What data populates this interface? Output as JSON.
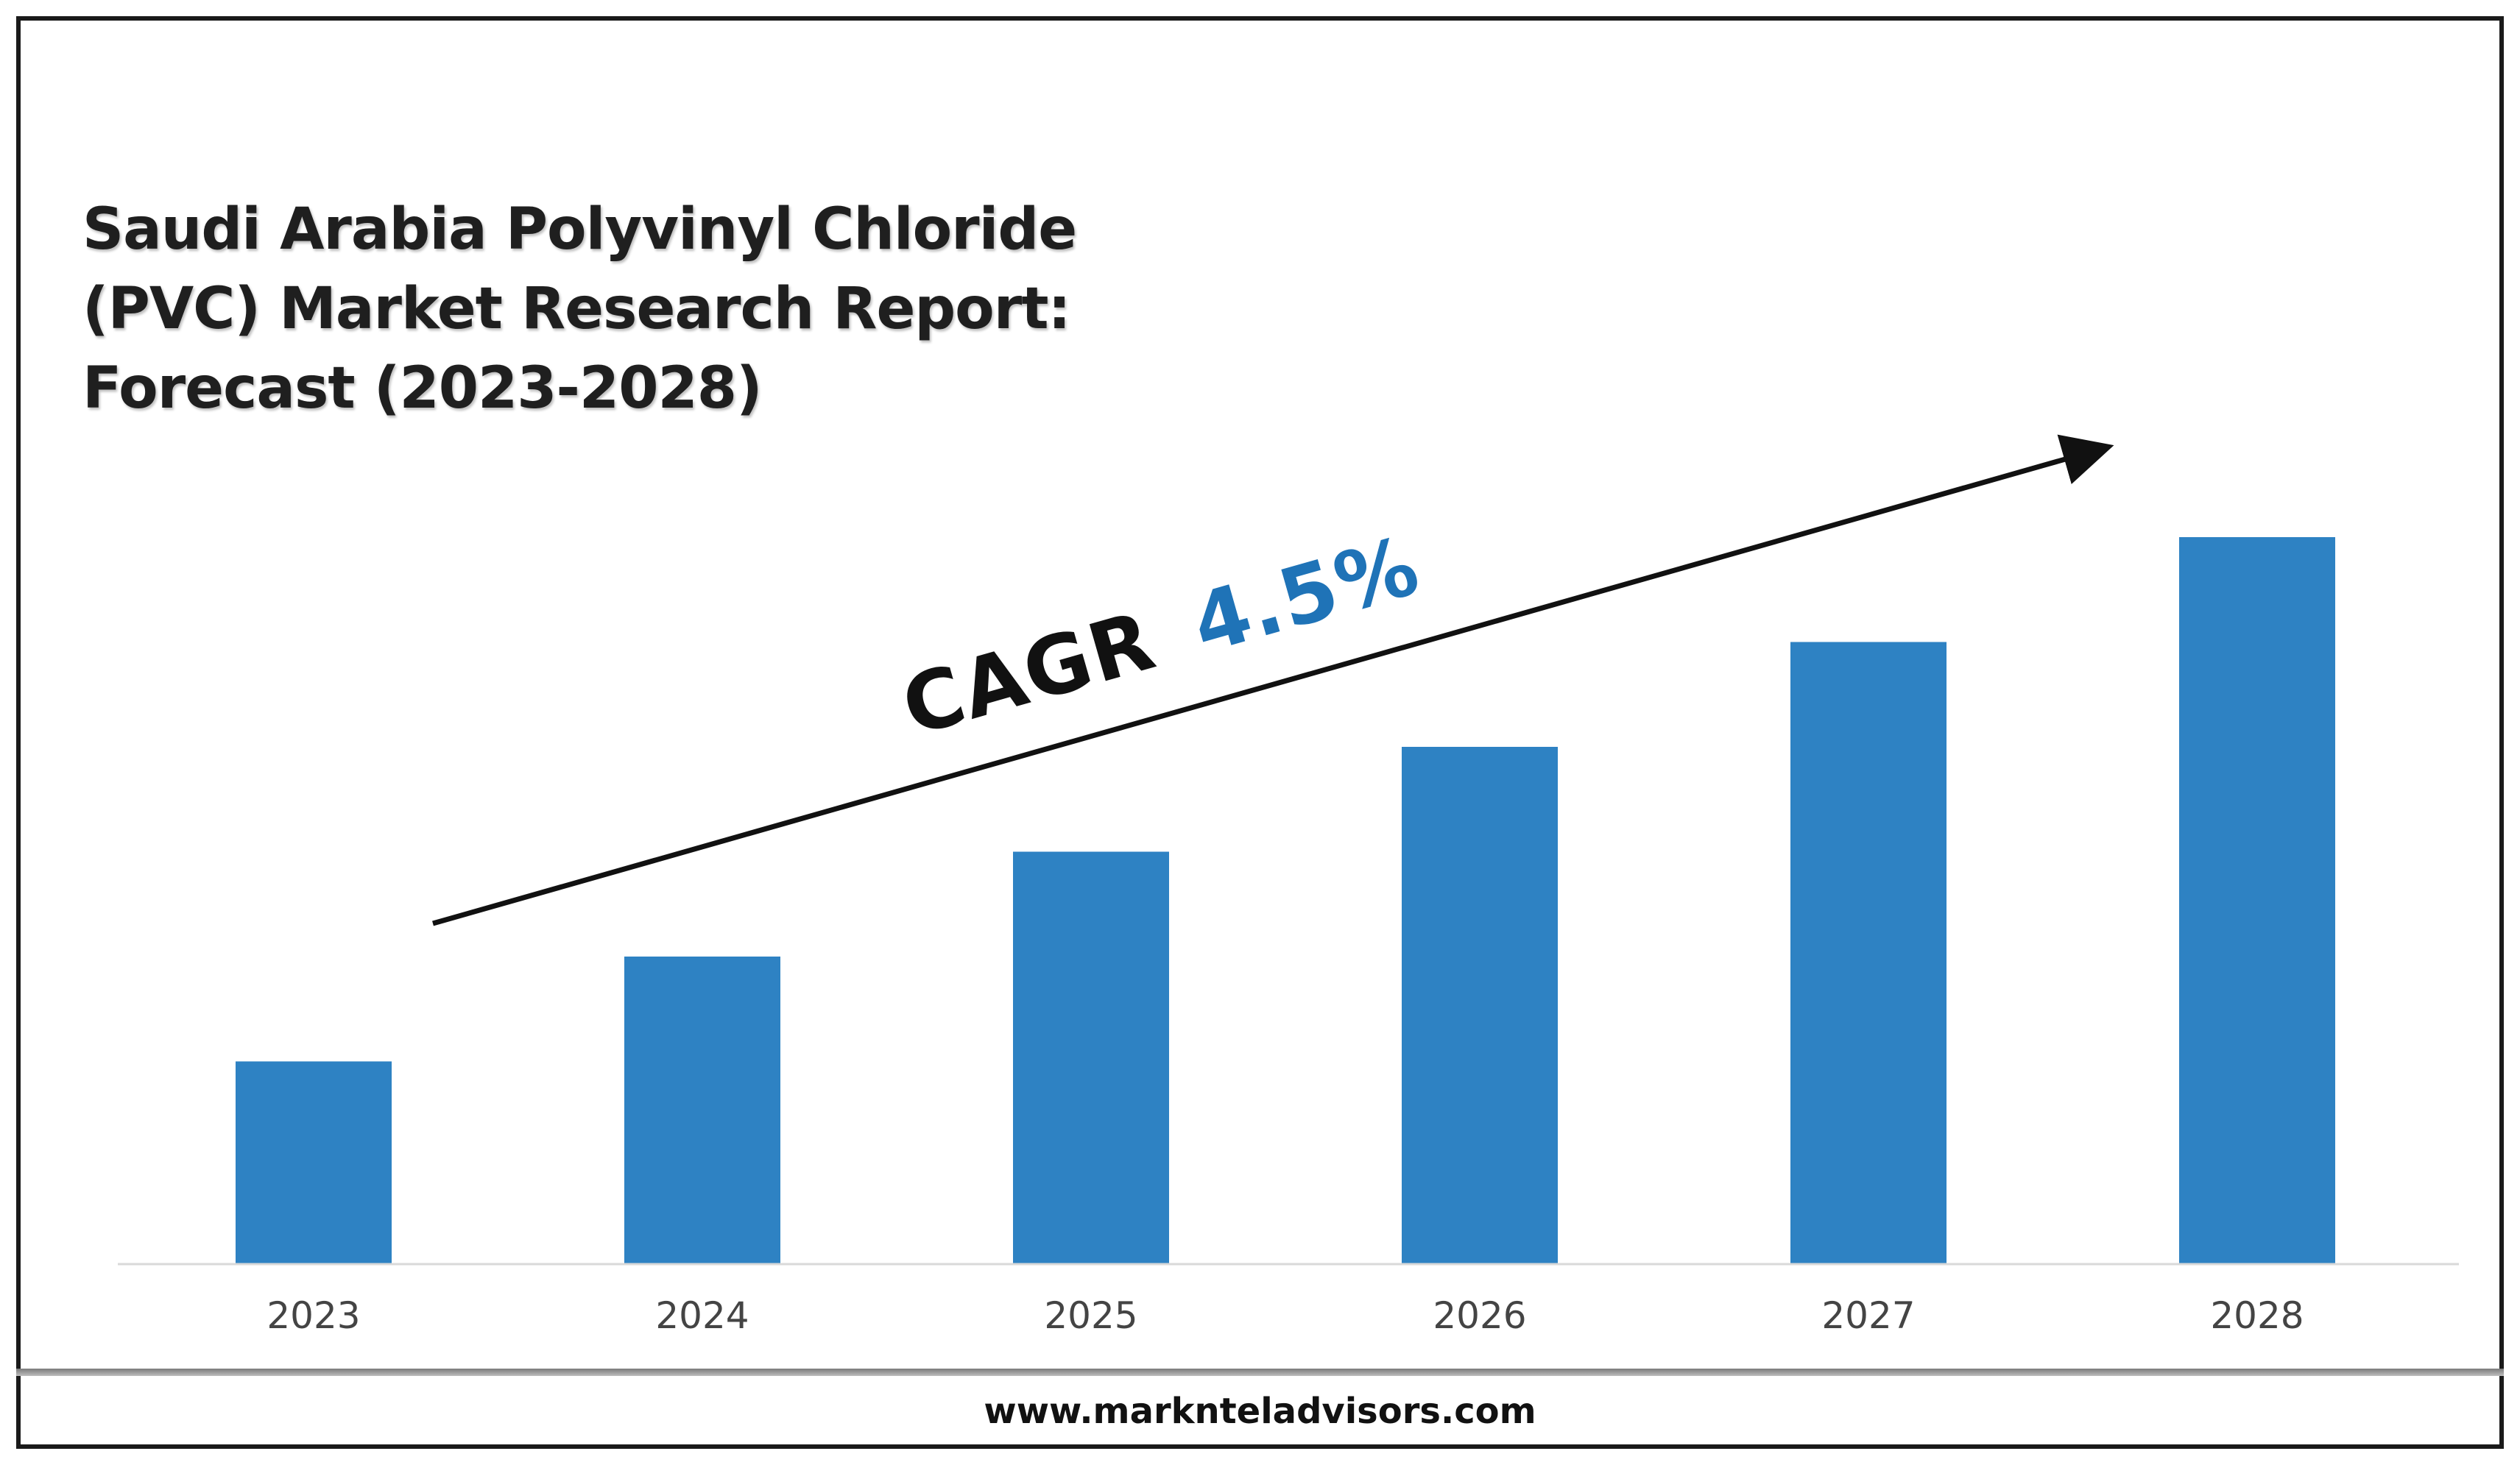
{
  "title_lines": [
    "Saudi Arabia Polyvinyl Chloride",
    "(PVC) Market Research Report:",
    "Forecast (2023-2028)"
  ],
  "cagr": {
    "label": "CAGR",
    "value": "4.5%"
  },
  "footer": {
    "url": "www.marknteladvisors.com"
  },
  "colors": {
    "bar": "#2e82c3",
    "cagr_value": "#1f73b7",
    "text": "#1f1f1f",
    "axis_labels": "#444444"
  },
  "chart_data": {
    "type": "bar",
    "categories": [
      "2023",
      "2024",
      "2025",
      "2026",
      "2027",
      "2028"
    ],
    "values": [
      2.9,
      4.4,
      5.9,
      7.4,
      8.9,
      10.4
    ],
    "value_note": "relative bar heights (no value axis shown)",
    "ylim": [
      0,
      12
    ],
    "grid": false,
    "legend": "none",
    "annotations": [
      "CAGR 4.5%"
    ]
  }
}
